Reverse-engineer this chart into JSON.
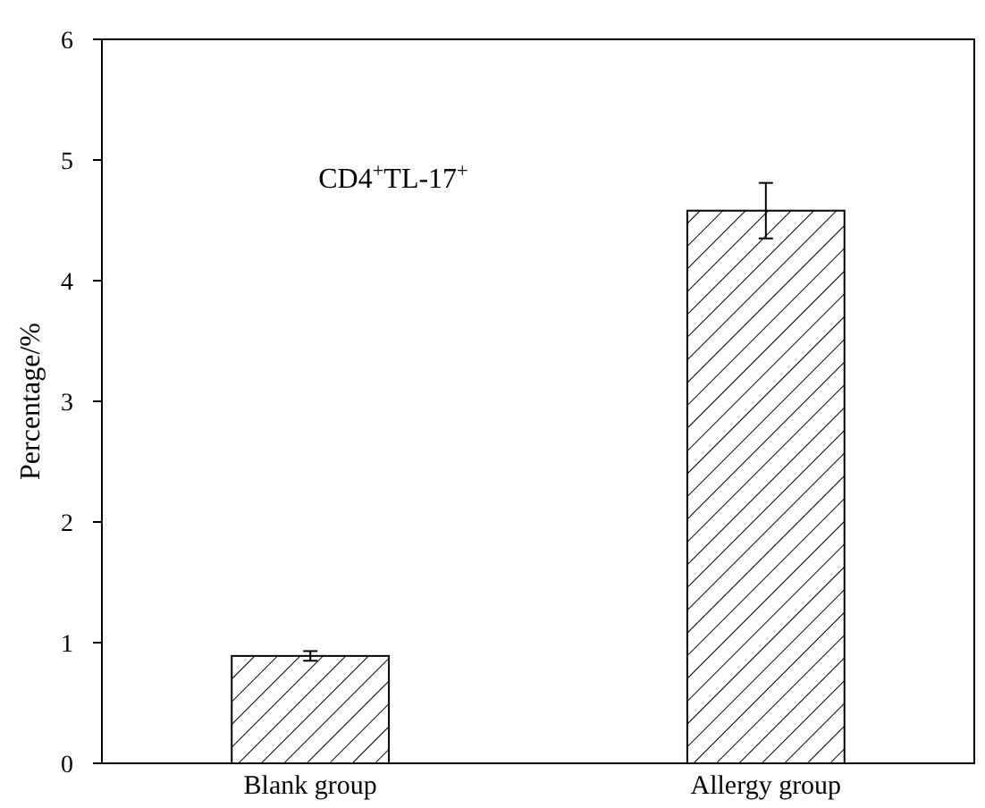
{
  "chart_data": {
    "type": "bar",
    "ylabel": "Percentage/%",
    "categories": [
      "Blank group",
      "Allergy group"
    ],
    "values": [
      0.89,
      4.58
    ],
    "errors": [
      0.04,
      0.23
    ],
    "color": "#000000",
    "ylim": [
      0,
      6
    ],
    "yticks": [
      0,
      1,
      2,
      3,
      4,
      5,
      6
    ],
    "annotations": [
      "CD4$^{+}$TL-17$^{+}$"
    ],
    "grid": false
  }
}
